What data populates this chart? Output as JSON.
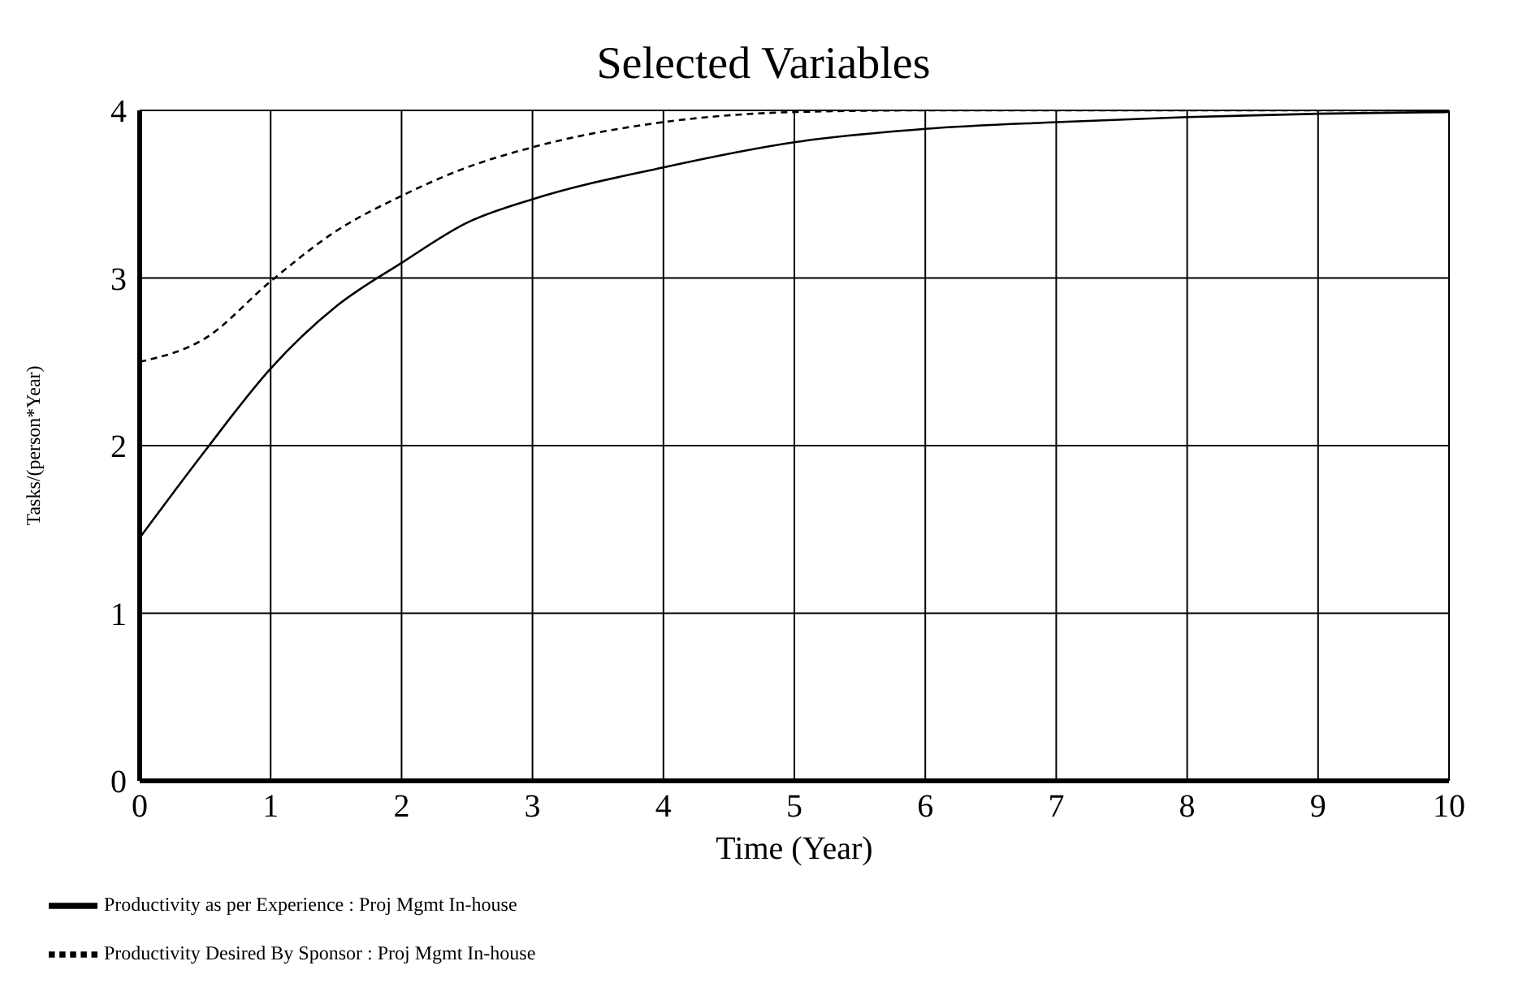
{
  "chart_data": {
    "type": "line",
    "title": "Selected Variables",
    "xlabel": "Time (Year)",
    "ylabel": "Tasks/(person*Year)",
    "x": [
      0,
      0.5,
      1,
      1.5,
      2,
      2.5,
      3,
      4,
      5,
      6,
      7,
      8,
      9,
      10
    ],
    "series": [
      {
        "name": "Productivity as per Experience : Proj Mgmt In-house",
        "color": "#000000",
        "line_style": "solid",
        "values": [
          1.45,
          1.97,
          2.46,
          2.83,
          3.09,
          3.33,
          3.47,
          3.66,
          3.81,
          3.89,
          3.93,
          3.96,
          3.98,
          3.99
        ]
      },
      {
        "name": "Productivity Desired By Sponsor : Proj Mgmt In-house",
        "color": "#000000",
        "line_style": "dashed",
        "values": [
          2.5,
          2.64,
          2.98,
          3.28,
          3.49,
          3.66,
          3.78,
          3.93,
          3.99,
          4,
          4,
          4,
          4,
          4
        ]
      }
    ],
    "xlim": [
      0,
      10
    ],
    "xticks": [
      0,
      1,
      2,
      3,
      4,
      5,
      6,
      7,
      8,
      9,
      10
    ],
    "ylim": [
      0,
      4
    ],
    "yticks": [
      0,
      1,
      2,
      3,
      4
    ],
    "grid": true,
    "legend": "bottom",
    "marker": "none"
  }
}
